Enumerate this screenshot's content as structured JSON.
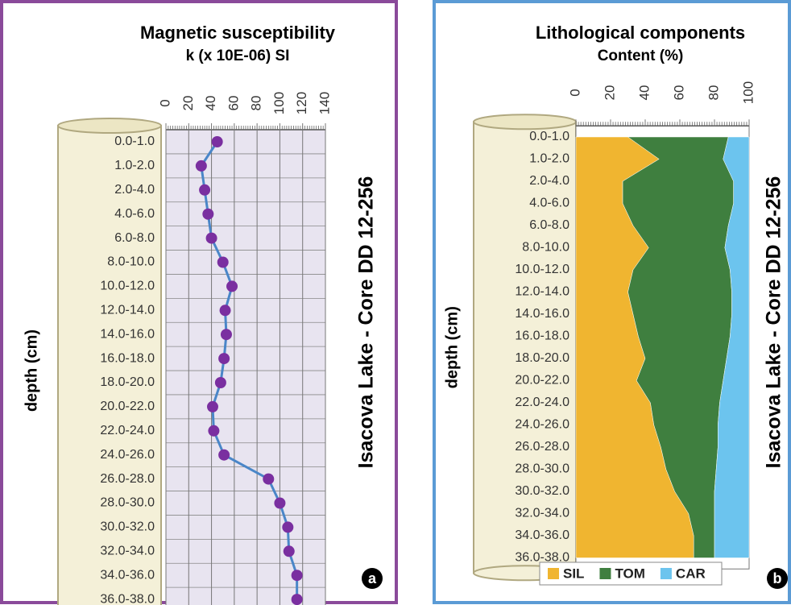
{
  "chart_data": [
    {
      "type": "line",
      "title": "Magnetic susceptibility",
      "subtitle": "k (x 10E-06) SI",
      "y_label": "depth (cm)",
      "side_label": "Isacova Lake - Core DD 12-256",
      "panel_label": "a",
      "categories": [
        "0.0-1.0",
        "1.0-2.0",
        "2.0-4.0",
        "4.0-6.0",
        "6.0-8.0",
        "8.0-10.0",
        "10.0-12.0",
        "12.0-14.0",
        "14.0-16.0",
        "16.0-18.0",
        "18.0-20.0",
        "20.0-22.0",
        "22.0-24.0",
        "24.0-26.0",
        "26.0-28.0",
        "28.0-30.0",
        "30.0-32.0",
        "32.0-34.0",
        "34.0-36.0",
        "36.0-38.0"
      ],
      "values": [
        45,
        31,
        34,
        37,
        40,
        50,
        58,
        52,
        53,
        51,
        48,
        41,
        42,
        51,
        90,
        100,
        107,
        108,
        115,
        115
      ],
      "color": "#4a86c8",
      "marker_color": "#7a2fa0",
      "xlim": [
        0,
        140
      ],
      "xticks": [
        0,
        20,
        40,
        60,
        80,
        100,
        120,
        140
      ],
      "grid": true
    },
    {
      "type": "area",
      "title": "Lithological components",
      "subtitle": "Content (%)",
      "y_label": "depth (cm)",
      "side_label": "Isacova Lake - Core DD 12-256",
      "panel_label": "b",
      "categories": [
        "0.0-1.0",
        "1.0-2.0",
        "2.0-4.0",
        "4.0-6.0",
        "6.0-8.0",
        "8.0-10.0",
        "10.0-12.0",
        "12.0-14.0",
        "14.0-16.0",
        "16.0-18.0",
        "18.0-20.0",
        "20.0-22.0",
        "22.0-24.0",
        "24.0-26.0",
        "26.0-28.0",
        "28.0-30.0",
        "30.0-32.0",
        "32.0-34.0",
        "34.0-36.0",
        "36.0-38.0"
      ],
      "series": [
        {
          "name": "SIL",
          "color": "#f0b530",
          "values": [
            30,
            48,
            27,
            27,
            33,
            42,
            33,
            30,
            33,
            36,
            40,
            35,
            43,
            45,
            49,
            52,
            57,
            65,
            68,
            68
          ]
        },
        {
          "name": "TOM",
          "color": "#3f7f3f",
          "values": [
            58,
            37,
            64,
            64,
            55,
            44,
            56,
            60,
            57,
            53,
            47,
            50,
            40,
            37,
            33,
            29,
            23,
            15,
            12,
            12
          ]
        },
        {
          "name": "CAR",
          "color": "#6cc4ee",
          "values": [
            12,
            15,
            9,
            9,
            12,
            14,
            11,
            10,
            10,
            11,
            13,
            15,
            17,
            18,
            18,
            19,
            20,
            20,
            20,
            20
          ]
        }
      ],
      "xlim": [
        0,
        100
      ],
      "xticks": [
        0,
        20,
        40,
        60,
        80,
        100
      ],
      "stacked": true
    }
  ]
}
